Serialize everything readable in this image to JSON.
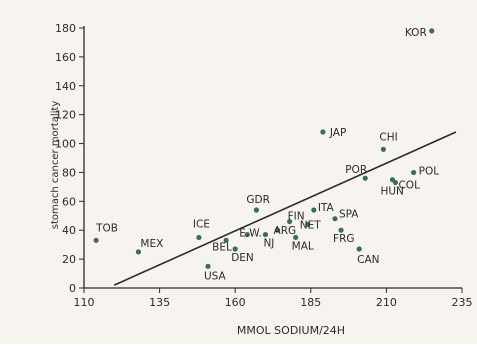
{
  "chart_data": {
    "type": "scatter",
    "title": "",
    "xlabel": "MMOL SODIUM/24H",
    "ylabel": "stomach cancer mortality",
    "xlim": [
      110,
      235
    ],
    "ylim": [
      0,
      180
    ],
    "xticks": [
      110,
      135,
      160,
      185,
      210,
      235
    ],
    "yticks": [
      0,
      20,
      40,
      60,
      80,
      100,
      120,
      140,
      160,
      180
    ],
    "grid": false,
    "legend": "none",
    "colors": {
      "background": "#f7f3ee",
      "ink": "#2b2b2b",
      "point": "#3c6b60"
    },
    "points": [
      {
        "label": "TOB",
        "x": 114,
        "y": 33
      },
      {
        "label": "MEX",
        "x": 128,
        "y": 25
      },
      {
        "label": "ICE",
        "x": 148,
        "y": 35
      },
      {
        "label": "USA",
        "x": 151,
        "y": 15
      },
      {
        "label": "BEL",
        "x": 157,
        "y": 33
      },
      {
        "label": "DEN",
        "x": 160,
        "y": 27
      },
      {
        "label": "E.W.",
        "x": 164,
        "y": 37
      },
      {
        "label": "GDR",
        "x": 167,
        "y": 54
      },
      {
        "label": "NJ",
        "x": 170,
        "y": 37
      },
      {
        "label": "ARG",
        "x": 174,
        "y": 40
      },
      {
        "label": "FIN",
        "x": 178,
        "y": 46
      },
      {
        "label": "MAL",
        "x": 180,
        "y": 35
      },
      {
        "label": "NET",
        "x": 184,
        "y": 44
      },
      {
        "label": "ITA",
        "x": 186,
        "y": 54
      },
      {
        "label": "SPA",
        "x": 193,
        "y": 48
      },
      {
        "label": "FRG",
        "x": 195,
        "y": 40
      },
      {
        "label": "JAP",
        "x": 189,
        "y": 108
      },
      {
        "label": "CAN",
        "x": 201,
        "y": 27
      },
      {
        "label": "POR",
        "x": 203,
        "y": 76
      },
      {
        "label": "CHI",
        "x": 209,
        "y": 96
      },
      {
        "label": "HUN",
        "x": 212,
        "y": 75
      },
      {
        "label": "COL",
        "x": 213,
        "y": 73
      },
      {
        "label": "POL",
        "x": 219,
        "y": 80
      },
      {
        "label": "KOR",
        "x": 225,
        "y": 178
      }
    ],
    "regression_line": {
      "x": [
        120,
        233
      ],
      "y": [
        2,
        108
      ]
    }
  }
}
